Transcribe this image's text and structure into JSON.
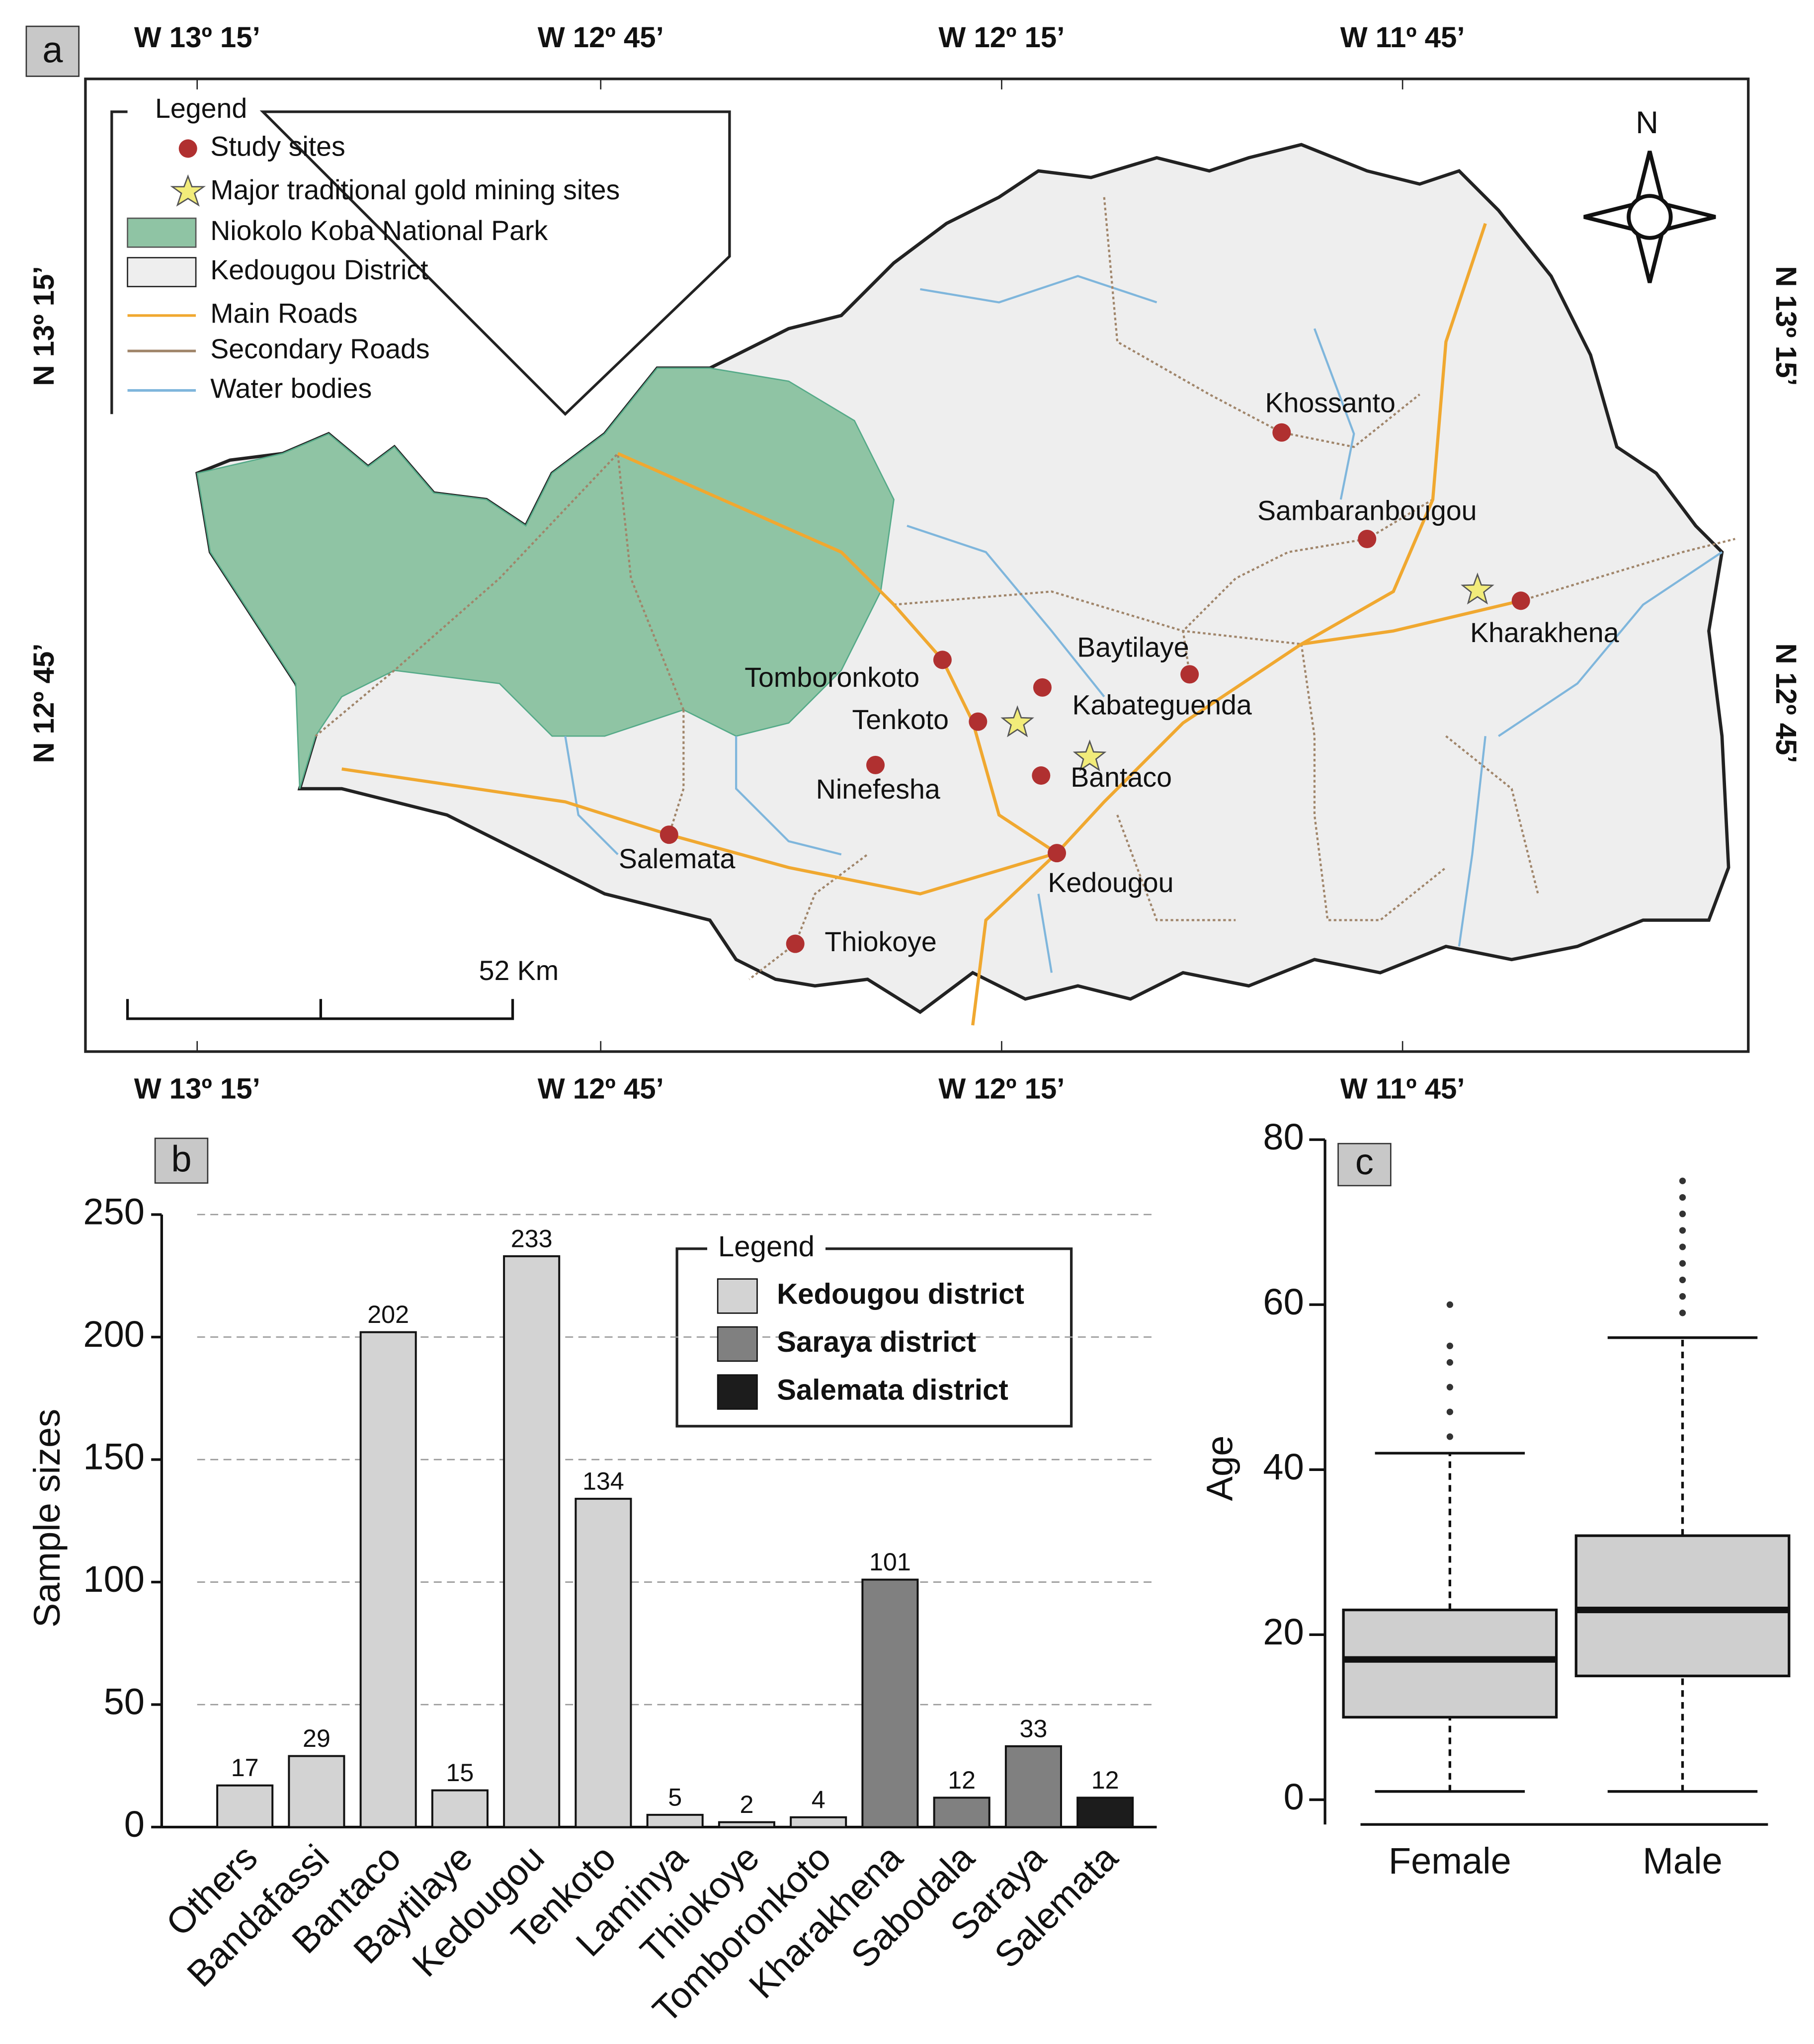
{
  "map": {
    "panel_label": "a",
    "lon_labels": [
      "W 13º 15’",
      "W 12º 45’",
      "W 12º 15’",
      "W 11º 45’"
    ],
    "lat_labels": [
      "N 13º 15’",
      "N 12º 45’"
    ],
    "legend": {
      "title": "Legend",
      "items": [
        "Study sites",
        "Major traditional gold mining sites",
        "Niokolo Koba National Park",
        "Kedougou District",
        "Main Roads",
        "Secondary Roads",
        "Water bodies"
      ]
    },
    "sites": [
      "Khossanto",
      "Sambaranbougou",
      "Kharakhena",
      "Baytilaye",
      "Kabateguenda",
      "Tomboronkoto",
      "Tenkoto",
      "Ninefesha",
      "Bantaco",
      "Kedougou",
      "Salemata",
      "Thiokoye"
    ],
    "north": "N",
    "scale": "52 Km"
  },
  "chart_data": [
    {
      "type": "bar",
      "panel_label": "b",
      "ylabel": "Sample sizes",
      "legend_title": "Legend",
      "categories": [
        "Others",
        "Bandafassi",
        "Bantaco",
        "Baytilaye",
        "Kedougou",
        "Tenkoto",
        "Laminya",
        "Thiokoye",
        "Tomboronkoto",
        "Kharakhena",
        "Sabodala",
        "Saraya",
        "Salemata"
      ],
      "series": [
        {
          "name": "Kedougou district",
          "color": "#d3d3d3",
          "values": [
            17,
            29,
            202,
            15,
            233,
            134,
            5,
            2,
            4,
            null,
            null,
            null,
            null
          ]
        },
        {
          "name": "Saraya district",
          "color": "#808080",
          "values": [
            null,
            null,
            null,
            null,
            null,
            null,
            null,
            null,
            null,
            101,
            12,
            33,
            null
          ]
        },
        {
          "name": "Salemata district",
          "color": "#1c1c1c",
          "values": [
            null,
            null,
            null,
            null,
            null,
            null,
            null,
            null,
            null,
            null,
            null,
            null,
            12
          ]
        }
      ],
      "ylim": [
        0,
        250
      ],
      "yticks": [
        0,
        50,
        100,
        150,
        200,
        250
      ],
      "grid": true
    },
    {
      "type": "box",
      "panel_label": "c",
      "ylabel": "Age",
      "categories": [
        "Female",
        "Male"
      ],
      "color": "#cfcfcf",
      "boxes": [
        {
          "whisker_low": 1,
          "q1": 10,
          "median": 17,
          "q3": 23,
          "whisker_high": 42,
          "outliers": [
            44,
            47,
            50,
            53,
            55,
            60
          ]
        },
        {
          "whisker_low": 1,
          "q1": 15,
          "median": 23,
          "q3": 32,
          "whisker_high": 56,
          "outliers": [
            59,
            61,
            63,
            65,
            67,
            69,
            71,
            73,
            75
          ]
        }
      ],
      "ylim": [
        -3,
        80
      ],
      "yticks": [
        0,
        20,
        40,
        60,
        80
      ]
    }
  ]
}
